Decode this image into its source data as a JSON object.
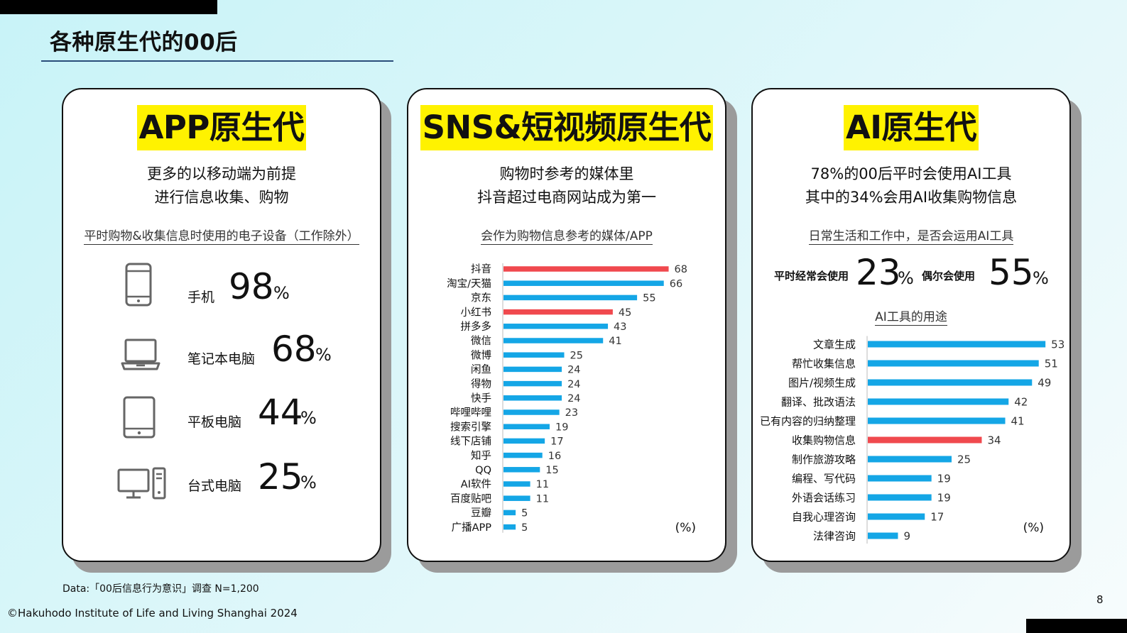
{
  "page": {
    "title": "各种原生代的00后",
    "footnote": "Data:「00后信息行为意识」调查 N=1,200",
    "copyright": "©Hakuhodo Institute of Life and Living Shanghai 2024",
    "page_number": "8"
  },
  "colors": {
    "highlight": "#fff200",
    "bar_blue": "#14a6e6",
    "bar_red": "#f0494e"
  },
  "card1": {
    "title": "APP原生代",
    "subtitle_line1": "更多的以移动端为前提",
    "subtitle_line2": "进行信息收集、购物",
    "section": "平时购物&收集信息时使用的电子设备（工作除外）",
    "devices": [
      {
        "icon": "smartphone-icon",
        "label": "手机",
        "value": "98",
        "unit": "%"
      },
      {
        "icon": "laptop-icon",
        "label": "笔记本电脑",
        "value": "68",
        "unit": "%"
      },
      {
        "icon": "tablet-icon",
        "label": "平板电脑",
        "value": "44",
        "unit": "%"
      },
      {
        "icon": "desktop-icon",
        "label": "台式电脑",
        "value": "25",
        "unit": "%"
      }
    ]
  },
  "card2": {
    "title": "SNS&短视频原生代",
    "subtitle_line1": "购物时参考的媒体里",
    "subtitle_line2": "抖音超过电商网站成为第一",
    "section": "会作为购物信息参考的媒体/APP"
  },
  "card3": {
    "title": "AI原生代",
    "subtitle_line1": "78%的00后平时会使用AI工具",
    "subtitle_line2": "其中的34%会用AI收集购物信息",
    "section": "日常生活和工作中，是否会运用AI工具",
    "stat1_label": "平时经常会使用",
    "stat1_value": "23",
    "stat2_label": "偶尔会使用",
    "stat2_value": "55",
    "stat_unit": "%",
    "chart_label": "AI工具的用途"
  },
  "chart_data": [
    {
      "type": "bar",
      "orientation": "horizontal",
      "unit_label": "(%)",
      "categories": [
        "抖音",
        "淘宝/天猫",
        "京东",
        "小红书",
        "拼多多",
        "微信",
        "微博",
        "闲鱼",
        "得物",
        "快手",
        "哔哩哔哩",
        "搜索引擎",
        "线下店铺",
        "知乎",
        "QQ",
        "AI软件",
        "百度贴吧",
        "豆瓣",
        "广播APP"
      ],
      "values": [
        68,
        66,
        55,
        45,
        43,
        41,
        25,
        24,
        24,
        24,
        23,
        19,
        17,
        16,
        15,
        11,
        11,
        5,
        5
      ],
      "highlighted": [
        "抖音",
        "小红书"
      ],
      "xlim": [
        0,
        100
      ]
    },
    {
      "type": "bar",
      "orientation": "horizontal",
      "unit_label": "(%)",
      "categories": [
        "文章生成",
        "帮忙收集信息",
        "图片/视频生成",
        "翻译、批改语法",
        "已有内容的归纳整理",
        "收集购物信息",
        "制作旅游攻略",
        "编程、写代码",
        "外语会话练习",
        "自我心理咨询",
        "法律咨询"
      ],
      "values": [
        53,
        51,
        49,
        42,
        41,
        34,
        25,
        19,
        19,
        17,
        9
      ],
      "highlighted": [
        "收集购物信息"
      ],
      "xlim": [
        0,
        100
      ]
    }
  ]
}
